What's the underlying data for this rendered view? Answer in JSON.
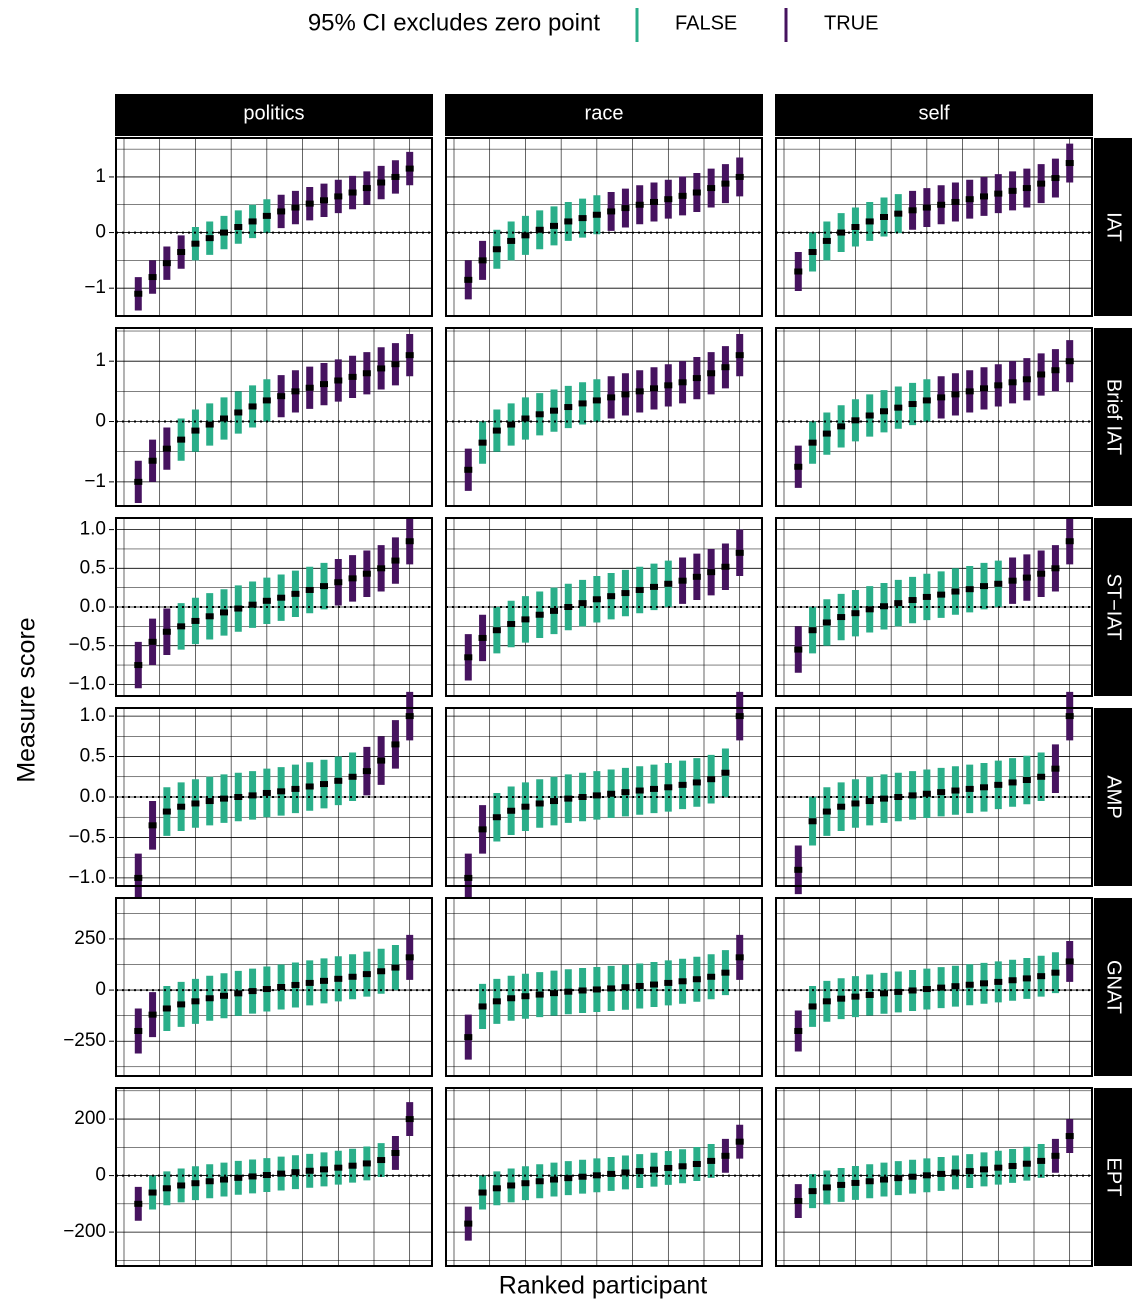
{
  "chart_data": {
    "type": "errorbar",
    "legend_title": "95% CI excludes zero point",
    "series": [
      {
        "name": "FALSE",
        "color": "#2aae89"
      },
      {
        "name": "TRUE",
        "color": "#46135f"
      }
    ],
    "x_label": "Ranked participant",
    "y_label": "Measure score",
    "reference_line": 0,
    "columns": [
      "politics",
      "race",
      "self"
    ],
    "x": [
      1,
      2,
      3,
      4,
      5,
      6,
      7,
      8,
      9,
      10,
      11,
      12,
      13,
      14,
      15,
      16,
      17,
      18,
      19,
      20
    ],
    "xlim": [
      0,
      21
    ],
    "xticks": [
      0,
      2.5,
      5,
      7.5,
      10,
      12.5,
      15,
      17.5,
      20
    ],
    "rows": [
      {
        "name": "IAT",
        "ylim": [
          -1.5,
          1.7
        ],
        "yticks": [
          {
            "value": -1,
            "label": "−1"
          },
          0,
          1
        ],
        "panels": [
          {
            "values": [
              -1.1,
              -0.8,
              -0.55,
              -0.35,
              -0.2,
              -0.1,
              0,
              0.1,
              0.2,
              0.3,
              0.38,
              0.45,
              0.52,
              0.58,
              0.65,
              0.72,
              0.8,
              0.9,
              1.0,
              1.15
            ],
            "error": 0.3
          },
          {
            "values": [
              -0.85,
              -0.5,
              -0.3,
              -0.15,
              -0.05,
              0.05,
              0.12,
              0.2,
              0.26,
              0.32,
              0.38,
              0.44,
              0.5,
              0.55,
              0.6,
              0.66,
              0.72,
              0.8,
              0.88,
              1.0
            ],
            "error": 0.35
          },
          {
            "values": [
              -0.7,
              -0.35,
              -0.15,
              0,
              0.1,
              0.2,
              0.28,
              0.34,
              0.4,
              0.45,
              0.5,
              0.55,
              0.6,
              0.65,
              0.7,
              0.75,
              0.8,
              0.88,
              0.98,
              1.25
            ],
            "error": 0.35
          }
        ]
      },
      {
        "name": "Brief IAT",
        "ylim": [
          -1.4,
          1.55
        ],
        "yticks": [
          {
            "value": -1,
            "label": "−1"
          },
          0,
          1
        ],
        "panels": [
          {
            "values": [
              -1.0,
              -0.65,
              -0.45,
              -0.3,
              -0.15,
              -0.05,
              0.05,
              0.15,
              0.25,
              0.35,
              0.42,
              0.5,
              0.56,
              0.62,
              0.68,
              0.74,
              0.8,
              0.88,
              0.95,
              1.1
            ],
            "error": 0.35
          },
          {
            "values": [
              -0.8,
              -0.35,
              -0.15,
              -0.05,
              0.05,
              0.12,
              0.18,
              0.24,
              0.3,
              0.35,
              0.4,
              0.45,
              0.5,
              0.55,
              0.6,
              0.65,
              0.72,
              0.8,
              0.9,
              1.1
            ],
            "error": 0.35
          },
          {
            "values": [
              -0.75,
              -0.35,
              -0.2,
              -0.08,
              0.02,
              0.1,
              0.17,
              0.23,
              0.29,
              0.35,
              0.4,
              0.45,
              0.5,
              0.55,
              0.6,
              0.65,
              0.7,
              0.78,
              0.85,
              1.0
            ],
            "error": 0.35
          }
        ]
      },
      {
        "name": "ST−IAT",
        "ylim": [
          -1.15,
          1.15
        ],
        "yticks": [
          {
            "value": -1,
            "label": "−1.0"
          },
          {
            "value": -0.5,
            "label": "−0.5"
          },
          {
            "value": 0,
            "label": "0.0"
          },
          0.5,
          {
            "value": 1,
            "label": "1.0"
          }
        ],
        "panels": [
          {
            "values": [
              -0.75,
              -0.45,
              -0.32,
              -0.25,
              -0.18,
              -0.12,
              -0.07,
              -0.02,
              0.03,
              0.08,
              0.12,
              0.17,
              0.22,
              0.27,
              0.32,
              0.37,
              0.43,
              0.5,
              0.6,
              0.85
            ],
            "error": 0.3
          },
          {
            "values": [
              -0.65,
              -0.4,
              -0.3,
              -0.22,
              -0.16,
              -0.1,
              -0.05,
              0,
              0.05,
              0.1,
              0.14,
              0.18,
              0.22,
              0.26,
              0.3,
              0.34,
              0.39,
              0.45,
              0.52,
              0.7
            ],
            "error": 0.3
          },
          {
            "values": [
              -0.55,
              -0.3,
              -0.2,
              -0.13,
              -0.08,
              -0.03,
              0.01,
              0.05,
              0.09,
              0.13,
              0.16,
              0.2,
              0.23,
              0.27,
              0.3,
              0.34,
              0.38,
              0.43,
              0.5,
              0.85
            ],
            "error": 0.3
          }
        ]
      },
      {
        "name": "AMP",
        "ylim": [
          -1.1,
          1.1
        ],
        "yticks": [
          {
            "value": -1,
            "label": "−1.0"
          },
          {
            "value": -0.5,
            "label": "−0.5"
          },
          {
            "value": 0,
            "label": "0.0"
          },
          0.5,
          {
            "value": 1,
            "label": "1.0"
          }
        ],
        "panels": [
          {
            "values": [
              -1.0,
              -0.35,
              -0.18,
              -0.12,
              -0.08,
              -0.05,
              -0.02,
              0,
              0.02,
              0.05,
              0.07,
              0.1,
              0.13,
              0.16,
              0.2,
              0.25,
              0.32,
              0.45,
              0.65,
              1.0
            ],
            "error": 0.3
          },
          {
            "values": [
              -1.0,
              -0.4,
              -0.25,
              -0.17,
              -0.12,
              -0.08,
              -0.05,
              -0.02,
              0,
              0.02,
              0.04,
              0.06,
              0.08,
              0.1,
              0.12,
              0.15,
              0.18,
              0.22,
              0.3,
              1.0
            ],
            "error": 0.3
          },
          {
            "values": [
              -0.9,
              -0.3,
              -0.18,
              -0.12,
              -0.08,
              -0.05,
              -0.02,
              0,
              0.02,
              0.04,
              0.06,
              0.08,
              0.1,
              0.12,
              0.15,
              0.18,
              0.21,
              0.25,
              0.35,
              1.0
            ],
            "error": 0.3
          }
        ]
      },
      {
        "name": "GNAT",
        "ylim": [
          -420,
          450
        ],
        "yticks": [
          {
            "value": -250,
            "label": "−250"
          },
          0,
          250
        ],
        "panels": [
          {
            "values": [
              -200,
              -120,
              -90,
              -70,
              -55,
              -40,
              -28,
              -16,
              -5,
              5,
              15,
              25,
              35,
              45,
              55,
              65,
              78,
              92,
              110,
              160
            ],
            "error": 110
          },
          {
            "values": [
              -230,
              -80,
              -55,
              -40,
              -30,
              -22,
              -15,
              -8,
              -2,
              3,
              8,
              14,
              20,
              27,
              35,
              43,
              53,
              65,
              85,
              160
            ],
            "error": 110
          },
          {
            "values": [
              -200,
              -80,
              -55,
              -42,
              -32,
              -24,
              -16,
              -9,
              -2,
              5,
              12,
              19,
              26,
              33,
              40,
              48,
              57,
              68,
              85,
              140
            ],
            "error": 100
          }
        ]
      },
      {
        "name": "EPT",
        "ylim": [
          -320,
          310
        ],
        "yticks": [
          {
            "value": -200,
            "label": "−200"
          },
          0,
          200
        ],
        "panels": [
          {
            "values": [
              -100,
              -60,
              -45,
              -35,
              -27,
              -20,
              -14,
              -8,
              -3,
              2,
              7,
              12,
              17,
              22,
              28,
              35,
              43,
              55,
              80,
              200
            ],
            "error": 60
          },
          {
            "values": [
              -170,
              -60,
              -45,
              -35,
              -27,
              -20,
              -14,
              -9,
              -4,
              1,
              6,
              11,
              16,
              21,
              27,
              33,
              41,
              52,
              70,
              120
            ],
            "error": 60
          },
          {
            "values": [
              -90,
              -55,
              -42,
              -33,
              -26,
              -20,
              -14,
              -9,
              -4,
              1,
              6,
              11,
              16,
              22,
              28,
              34,
              42,
              52,
              70,
              140
            ],
            "error": 60
          }
        ]
      }
    ]
  }
}
